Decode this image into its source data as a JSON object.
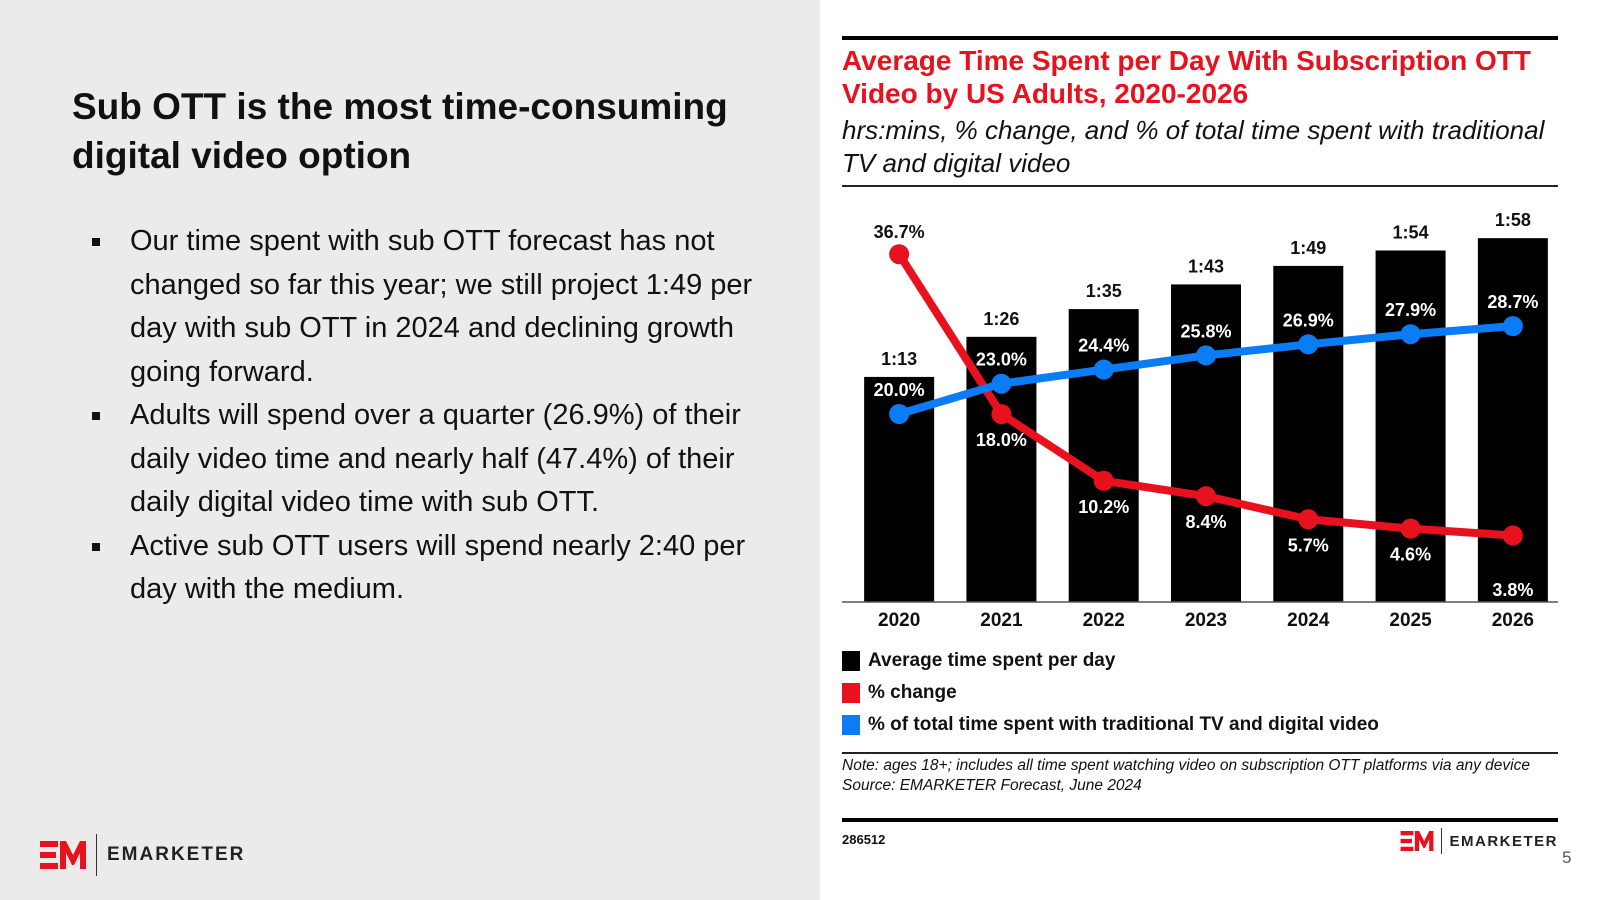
{
  "slide": {
    "title": "Sub OTT is the most time-consuming digital video option",
    "bullets": [
      "Our time spent with sub OTT forecast has not changed so far this year; we still project 1:49 per day with sub OTT in 2024 and declining growth going forward.",
      "Adults will spend over a quarter (26.9%) of their daily video time and nearly half (47.4%) of their daily digital video time with sub OTT.",
      "Active sub OTT users will spend nearly 2:40 per day with the medium."
    ],
    "brand": "EMARKETER",
    "page_number": "5"
  },
  "colors": {
    "accent_red": "#e8121e",
    "blue": "#0a7cf5",
    "bar": "#000000",
    "left_bg": "#ebebeb"
  },
  "chart_data": {
    "type": "bar",
    "title": "Average Time Spent per Day With Subscription OTT Video by US Adults, 2020-2026",
    "subtitle": "hrs:mins, % change, and % of total time spent with traditional TV and digital video",
    "categories": [
      "2020",
      "2021",
      "2022",
      "2023",
      "2024",
      "2025",
      "2026"
    ],
    "series": [
      {
        "name": "Average time spent per day",
        "kind": "bar",
        "color": "#000000",
        "labels": [
          "1:13",
          "1:26",
          "1:35",
          "1:43",
          "1:49",
          "1:54",
          "1:58"
        ],
        "values_minutes": [
          73,
          86,
          95,
          103,
          109,
          114,
          118
        ]
      },
      {
        "name": "% change",
        "kind": "line",
        "color": "#e8121e",
        "values": [
          36.7,
          18.0,
          10.2,
          8.4,
          5.7,
          4.6,
          3.8
        ],
        "labels": [
          "36.7%",
          "18.0%",
          "10.2%",
          "8.4%",
          "5.7%",
          "4.6%",
          "3.8%"
        ]
      },
      {
        "name": "% of total time spent with traditional TV and digital video",
        "kind": "line",
        "color": "#0a7cf5",
        "values": [
          20.0,
          23.0,
          24.4,
          25.8,
          26.9,
          27.9,
          28.7
        ],
        "labels": [
          "20.0%",
          "23.0%",
          "24.4%",
          "25.8%",
          "26.9%",
          "27.9%",
          "28.7%"
        ]
      }
    ],
    "xlabel": "",
    "ylabel": "",
    "grid": false,
    "legend_position": "bottom-left",
    "note": "Note: ages 18+; includes all time spent watching video on subscription OTT platforms via any device",
    "source": "Source: EMARKETER Forecast, June 2024",
    "chart_id": "286512"
  }
}
